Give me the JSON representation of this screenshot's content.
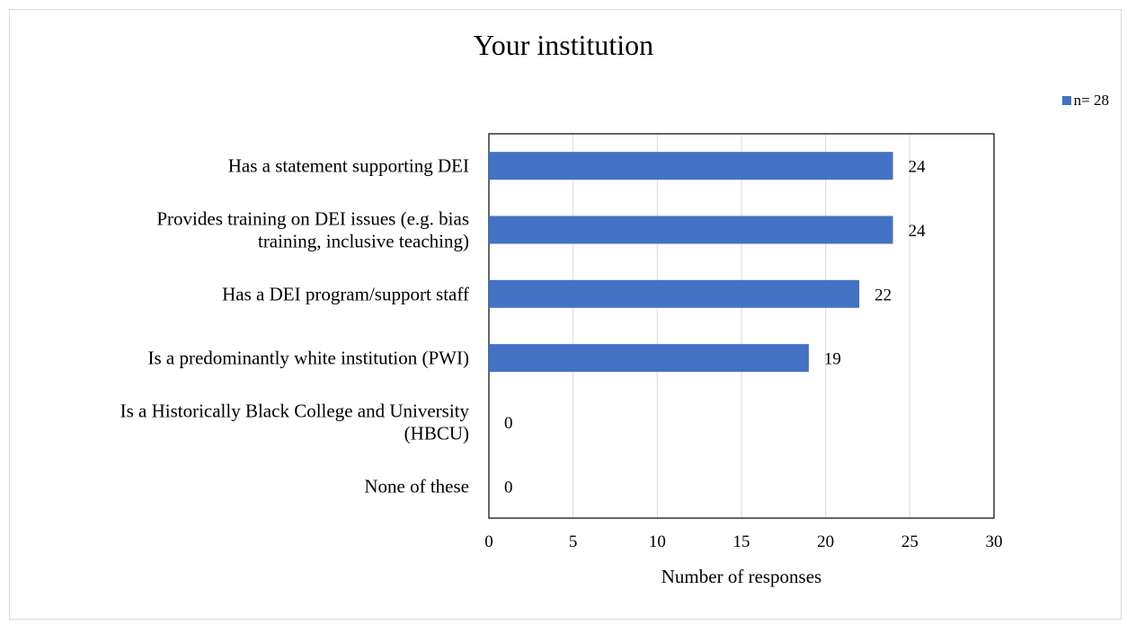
{
  "chart_data": {
    "type": "bar",
    "orientation": "horizontal",
    "title": "Your institution",
    "categories": [
      [
        "Has a statement supporting DEI"
      ],
      [
        "Provides training on DEI issues (e.g. bias",
        "training, inclusive teaching)"
      ],
      [
        "Has a DEI program/support staff"
      ],
      [
        "Is a predominantly white institution (PWI)"
      ],
      [
        "Is a Historically Black College and University",
        "(HBCU)"
      ],
      [
        "None of these"
      ]
    ],
    "series": [
      {
        "name": "n= 28",
        "values": [
          24,
          24,
          22,
          19,
          0,
          0
        ]
      }
    ],
    "data_labels": [
      "24",
      "24",
      "22",
      "19",
      "0",
      "0"
    ],
    "xlabel": "Number of responses",
    "ylabel": "",
    "xlim": [
      0,
      30
    ],
    "xticks": [
      0,
      5,
      10,
      15,
      20,
      25,
      30
    ],
    "grid": true,
    "legend_position": "top-right",
    "colors": {
      "bar": "#4472c4",
      "grid": "#d9d9d9",
      "axis": "#000000"
    }
  }
}
